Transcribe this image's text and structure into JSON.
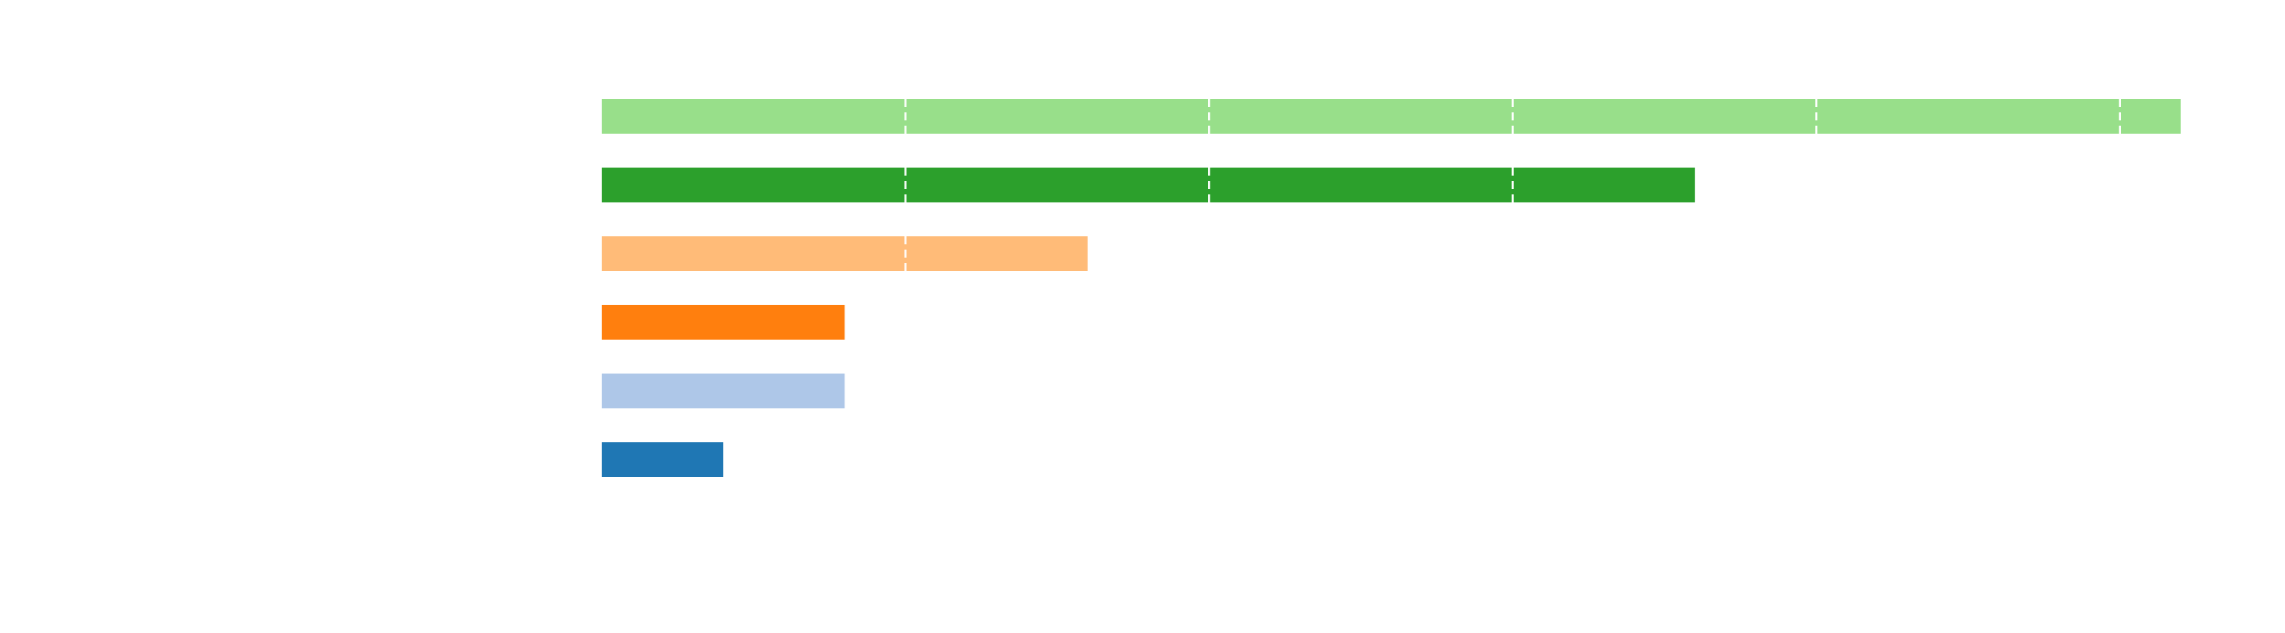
{
  "chart_data": {
    "type": "bar",
    "orientation": "horizontal",
    "values": [
      2.0,
      4.0,
      4.0,
      8.0,
      18.0,
      26.0
    ],
    "colors": [
      "#1f77b4",
      "#aec7e8",
      "#ff7f0e",
      "#ffbb78",
      "#2ca02c",
      "#98df8a"
    ],
    "xlim": [
      0,
      26
    ],
    "grid": {
      "x": true,
      "y": false,
      "style": "dashed",
      "color": "#ffffff",
      "drawn": "over bars"
    },
    "gridlines_x": [
      5,
      10,
      15,
      20,
      25
    ],
    "axes_visible": false
  }
}
